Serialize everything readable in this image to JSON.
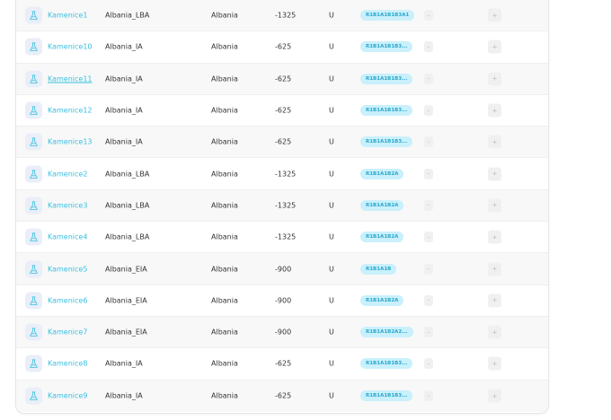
{
  "colors": {
    "link": "#39bfe0",
    "badge_bg": "#c9f0fb",
    "badge_text": "#2aa8cc"
  },
  "row_icon": "flask-icon",
  "rows": [
    {
      "name": "Kamenice1",
      "type": "Albania_LBA",
      "country": "Albania",
      "value": "-1325",
      "unit": "U",
      "code": "R1B1A1B1B3A1",
      "dash": "-",
      "action": "+"
    },
    {
      "name": "Kamenice10",
      "type": "Albania_IA",
      "country": "Albania",
      "value": "-625",
      "unit": "U",
      "code": "R1B1A1B1B3...",
      "dash": "-",
      "action": "+"
    },
    {
      "name": "Kamenice11",
      "type": "Albania_IA",
      "country": "Albania",
      "value": "-625",
      "unit": "U",
      "code": "R1B1A1B1B3...",
      "dash": "-",
      "action": "+",
      "hover": true
    },
    {
      "name": "Kamenice12",
      "type": "Albania_IA",
      "country": "Albania",
      "value": "-625",
      "unit": "U",
      "code": "R1B1A1B1B3...",
      "dash": "-",
      "action": "+"
    },
    {
      "name": "Kamenice13",
      "type": "Albania_IA",
      "country": "Albania",
      "value": "-625",
      "unit": "U",
      "code": "R1B1A1B1B3...",
      "dash": "-",
      "action": "+"
    },
    {
      "name": "Kamenice2",
      "type": "Albania_LBA",
      "country": "Albania",
      "value": "-1325",
      "unit": "U",
      "code": "R1B1A1B2A",
      "dash": "-",
      "action": "+"
    },
    {
      "name": "Kamenice3",
      "type": "Albania_LBA",
      "country": "Albania",
      "value": "-1325",
      "unit": "U",
      "code": "R1B1A1B2A",
      "dash": "-",
      "action": "+"
    },
    {
      "name": "Kamenice4",
      "type": "Albania_LBA",
      "country": "Albania",
      "value": "-1325",
      "unit": "U",
      "code": "R1B1A1B2A",
      "dash": "-",
      "action": "+"
    },
    {
      "name": "Kamenice5",
      "type": "Albania_EIA",
      "country": "Albania",
      "value": "-900",
      "unit": "U",
      "code": "R1B1A1B",
      "dash": "-",
      "action": "+"
    },
    {
      "name": "Kamenice6",
      "type": "Albania_EIA",
      "country": "Albania",
      "value": "-900",
      "unit": "U",
      "code": "R1B1A1B2A",
      "dash": "-",
      "action": "+"
    },
    {
      "name": "Kamenice7",
      "type": "Albania_EIA",
      "country": "Albania",
      "value": "-900",
      "unit": "U",
      "code": "R1B1A1B2A2...",
      "dash": "-",
      "action": "+"
    },
    {
      "name": "Kamenice8",
      "type": "Albania_IA",
      "country": "Albania",
      "value": "-625",
      "unit": "U",
      "code": "R1B1A1B1B3...",
      "dash": "-",
      "action": "+"
    },
    {
      "name": "Kamenice9",
      "type": "Albania_IA",
      "country": "Albania",
      "value": "-625",
      "unit": "U",
      "code": "R1B1A1B1B3...",
      "dash": "-",
      "action": "+"
    }
  ]
}
